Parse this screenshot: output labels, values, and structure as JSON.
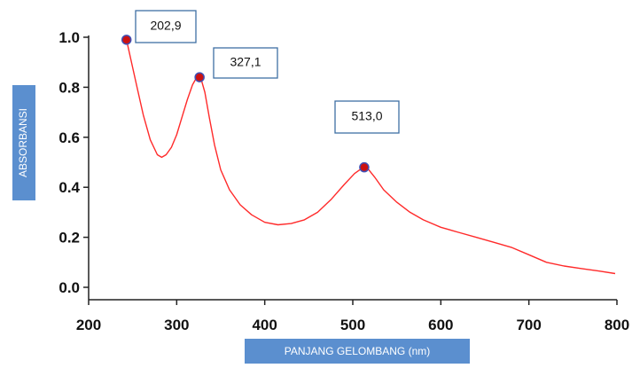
{
  "chart_data": {
    "type": "line",
    "title": "",
    "xlabel": "PANJANG GELOMBANG (nm)",
    "ylabel": "ABSORBANSI",
    "xlim": [
      200,
      800
    ],
    "ylim": [
      0.0,
      1.0
    ],
    "x_ticks": [
      "200",
      "300",
      "400",
      "500",
      "600",
      "700",
      "800"
    ],
    "y_ticks": [
      "0.0",
      "0.2",
      "0.4",
      "0.6",
      "0.8",
      "1.0"
    ],
    "grid": false,
    "series": [
      {
        "color": "#ff2a2a",
        "x": [
          243,
          248,
          255,
          262,
          270,
          278,
          283,
          288,
          294,
          300,
          306,
          312,
          318,
          322,
          325,
          328,
          332,
          337,
          343,
          350,
          360,
          372,
          385,
          400,
          415,
          430,
          445,
          460,
          475,
          490,
          502,
          510,
          513,
          517,
          525,
          535,
          550,
          565,
          580,
          600,
          620,
          640,
          660,
          680,
          700,
          720,
          740,
          760,
          780,
          798
        ],
        "y": [
          0.99,
          0.91,
          0.8,
          0.69,
          0.59,
          0.53,
          0.52,
          0.53,
          0.56,
          0.61,
          0.68,
          0.75,
          0.81,
          0.835,
          0.84,
          0.83,
          0.78,
          0.68,
          0.57,
          0.47,
          0.39,
          0.33,
          0.29,
          0.26,
          0.25,
          0.255,
          0.27,
          0.3,
          0.35,
          0.41,
          0.455,
          0.475,
          0.48,
          0.475,
          0.44,
          0.39,
          0.34,
          0.3,
          0.27,
          0.24,
          0.22,
          0.2,
          0.18,
          0.16,
          0.13,
          0.1,
          0.085,
          0.075,
          0.065,
          0.055
        ]
      }
    ],
    "peaks": [
      {
        "x": 243,
        "y": 0.99,
        "label": "202,9"
      },
      {
        "x": 326,
        "y": 0.84,
        "label": "327,1"
      },
      {
        "x": 513,
        "y": 0.48,
        "label": "513,0"
      }
    ],
    "colors": {
      "line": "#ff2a2a",
      "marker": "#cc1111",
      "marker_outline": "#3f4fb5",
      "label_box_border": "#3f6fa3",
      "axis_title_box": "#5b8fcf"
    }
  }
}
